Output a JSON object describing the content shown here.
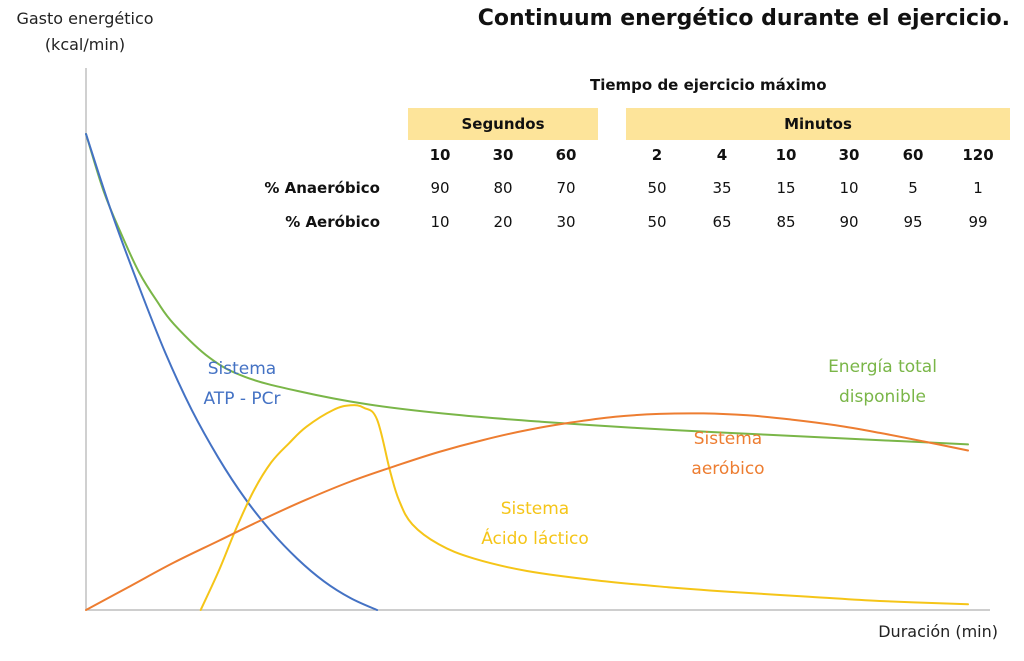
{
  "chart_data": {
    "type": "line",
    "title": "Continuum energético durante el ejercicio.",
    "ylabel_line1": "Gasto energético",
    "ylabel_line2": "(kcal/min)",
    "xlabel": "Duración (min)",
    "grid": false,
    "legend": "none",
    "series": [
      {
        "name_line1": "Energía total",
        "name_line2": "disponible",
        "color": "#7ab648",
        "values": [
          [
            0,
            100
          ],
          [
            2,
            88
          ],
          [
            4,
            79
          ],
          [
            6,
            71
          ],
          [
            8,
            65
          ],
          [
            10,
            60
          ],
          [
            14,
            53
          ],
          [
            18,
            49
          ],
          [
            24,
            46
          ],
          [
            32,
            43.2
          ],
          [
            42,
            41
          ],
          [
            52,
            39.5
          ],
          [
            62,
            38.3
          ],
          [
            72,
            37.3
          ],
          [
            82,
            36.4
          ],
          [
            92,
            35.5
          ],
          [
            100,
            34.8
          ]
        ]
      },
      {
        "name_line1": "Sistema",
        "name_line2": "ATP - PCr",
        "color": "#4472c4",
        "values": [
          [
            0,
            100
          ],
          [
            3,
            83
          ],
          [
            6,
            68
          ],
          [
            9,
            54
          ],
          [
            12,
            42
          ],
          [
            15,
            32
          ],
          [
            18,
            23.5
          ],
          [
            21,
            16.5
          ],
          [
            24,
            10.7
          ],
          [
            27,
            6
          ],
          [
            30,
            2.5
          ],
          [
            33,
            0
          ]
        ]
      },
      {
        "name_line1": "Sistema",
        "name_line2": "Ácido láctico",
        "color": "#f5c518",
        "values": [
          [
            13,
            0
          ],
          [
            15,
            8
          ],
          [
            17,
            17
          ],
          [
            19,
            25
          ],
          [
            21,
            31
          ],
          [
            23,
            35
          ],
          [
            25,
            38.5
          ],
          [
            28,
            42
          ],
          [
            30,
            43
          ],
          [
            31.5,
            42.5
          ],
          [
            33,
            40
          ],
          [
            34.5,
            29
          ],
          [
            35.5,
            23
          ],
          [
            37,
            18
          ],
          [
            40,
            13.8
          ],
          [
            44,
            10.8
          ],
          [
            50,
            8.2
          ],
          [
            58,
            6.2
          ],
          [
            66,
            4.8
          ],
          [
            74,
            3.7
          ],
          [
            82,
            2.8
          ],
          [
            90,
            1.9
          ],
          [
            100,
            1.2
          ]
        ]
      },
      {
        "name_line1": "Sistema",
        "name_line2": "aeróbico",
        "color": "#ed7d31",
        "values": [
          [
            0,
            0
          ],
          [
            5,
            5
          ],
          [
            10,
            10
          ],
          [
            15,
            14.5
          ],
          [
            20,
            19
          ],
          [
            25,
            23.2
          ],
          [
            30,
            27
          ],
          [
            35,
            30.2
          ],
          [
            40,
            33.2
          ],
          [
            45,
            35.7
          ],
          [
            50,
            37.8
          ],
          [
            55,
            39.4
          ],
          [
            60,
            40.6
          ],
          [
            65,
            41.2
          ],
          [
            70,
            41.3
          ],
          [
            75,
            40.9
          ],
          [
            80,
            40
          ],
          [
            85,
            38.8
          ],
          [
            90,
            37.2
          ],
          [
            95,
            35.4
          ],
          [
            100,
            33.5
          ]
        ]
      }
    ]
  },
  "table": {
    "title": "Tiempo de ejercicio máximo",
    "groups": [
      {
        "label": "Segundos",
        "times": [
          "10",
          "30",
          "60"
        ]
      },
      {
        "label": "Minutos",
        "times": [
          "2",
          "4",
          "10",
          "30",
          "60",
          "120"
        ]
      }
    ],
    "rows": [
      {
        "label": "% Anaeróbico",
        "values": [
          "90",
          "80",
          "70",
          "50",
          "35",
          "15",
          "10",
          "5",
          "1"
        ]
      },
      {
        "label": "% Aeróbico",
        "values": [
          "10",
          "20",
          "30",
          "50",
          "65",
          "85",
          "90",
          "95",
          "99"
        ]
      }
    ]
  }
}
